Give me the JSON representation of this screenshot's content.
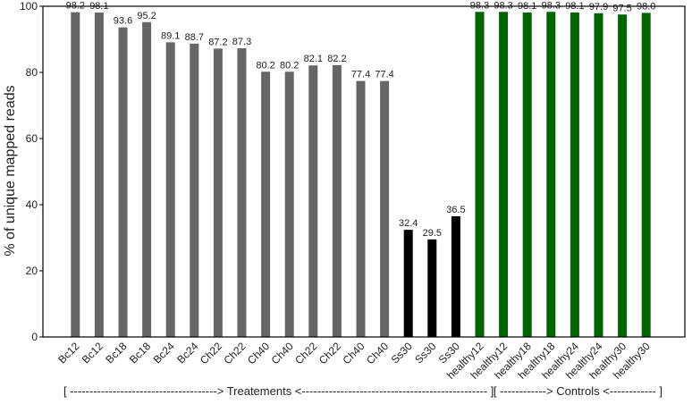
{
  "chart_data": {
    "type": "bar",
    "ylabel": "% of unique mapped reads",
    "ylim": [
      0,
      100
    ],
    "yticks": [
      0,
      20,
      40,
      60,
      80,
      100
    ],
    "grid": false,
    "categories": [
      "Bc12",
      "Bc12",
      "Bc18",
      "Bc18",
      "Bc24",
      "Bc24",
      "Ch22",
      "Ch22",
      "Ch40",
      "Ch40",
      "Ch22",
      "Ch22",
      "Ch40",
      "Ch40",
      "Ss30",
      "Ss30",
      "Ss30",
      "healthy12",
      "healthy12",
      "healthy18",
      "healthy18",
      "healthy24",
      "healthy24",
      "healthy30",
      "healthy30"
    ],
    "values": [
      98.2,
      98.1,
      93.6,
      95.2,
      89.1,
      88.7,
      87.2,
      87.3,
      80.2,
      80.2,
      82.1,
      82.2,
      77.4,
      77.4,
      32.4,
      29.5,
      36.5,
      98.3,
      98.3,
      98.1,
      98.3,
      98.1,
      97.9,
      97.5,
      98.0
    ],
    "value_labels": [
      "98.2",
      "98.1",
      "93.6",
      "95.2",
      "89.1",
      "88.7",
      "87.2",
      "87.3",
      "80.2",
      "80.2",
      "82.1",
      "82.2",
      "77.4",
      "77.4",
      "32.4",
      "29.5",
      "36.5",
      "98.3",
      "98.3",
      "98.1",
      "98.3",
      "98.1",
      "97.9",
      "97.5",
      "98.0"
    ],
    "bar_colors": [
      "#666666",
      "#666666",
      "#666666",
      "#666666",
      "#666666",
      "#666666",
      "#666666",
      "#666666",
      "#666666",
      "#666666",
      "#666666",
      "#666666",
      "#666666",
      "#666666",
      "#000000",
      "#000000",
      "#000000",
      "#006400",
      "#006400",
      "#006400",
      "#006400",
      "#006400",
      "#006400",
      "#006400",
      "#006400"
    ],
    "group_caption_left": "[ --------------------------------------> Treatements <------------------------------------------------ ]",
    "group_caption_right": "[ ------------> Controls <------------ ]"
  }
}
